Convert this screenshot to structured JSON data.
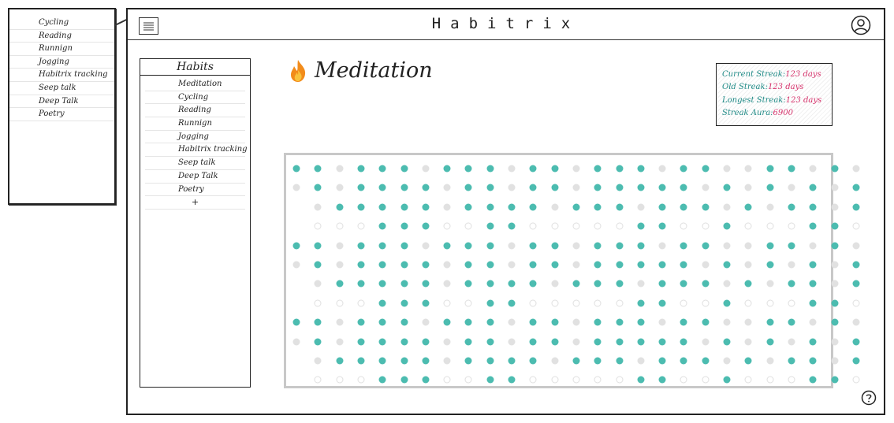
{
  "app": {
    "title": "Habitrix"
  },
  "popup": {
    "items": [
      "Cycling",
      "Reading",
      "Runnign",
      "Jogging",
      "Habitrix tracking",
      "Seep talk",
      "Deep Talk",
      "Poetry"
    ]
  },
  "sidebar": {
    "header": "Habits",
    "items": [
      "Meditation",
      "Cycling",
      "Reading",
      "Runnign",
      "Jogging",
      "Habitrix tracking",
      "Seep talk",
      "Deep Talk",
      "Poetry"
    ],
    "add_label": "+"
  },
  "habit": {
    "name": "Meditation",
    "icon": "flame-icon"
  },
  "stats": {
    "current_label": "Current Streak:",
    "current_value": "123 days",
    "old_label": "Old Streak:",
    "old_value": "123 days",
    "longest_label": "Longest Streak:",
    "longest_value": "123 days",
    "aura_label": "Streak Aura:",
    "aura_value": "6900"
  },
  "colors": {
    "done": "#4cbcb0",
    "missed": "#e1e1e1",
    "accent_label": "#1f8a86",
    "accent_value": "#d6336c"
  },
  "grid": {
    "legend": "1 = done, 0 = missed, - = empty",
    "rows": [
      "110111011101101110110011010",
      "010111101101101111101010101",
      "01111101111011101110101101",
      "00011100110000011001000110",
      "110111011101101110110011010",
      "010111101101101111101010101",
      "01111101111011101110101101",
      "00011100110000011001000110",
      "110111011101101110110011010",
      "010111101101101111101010101",
      "01111101111011101110101101",
      "00011100110000011001000110"
    ]
  }
}
